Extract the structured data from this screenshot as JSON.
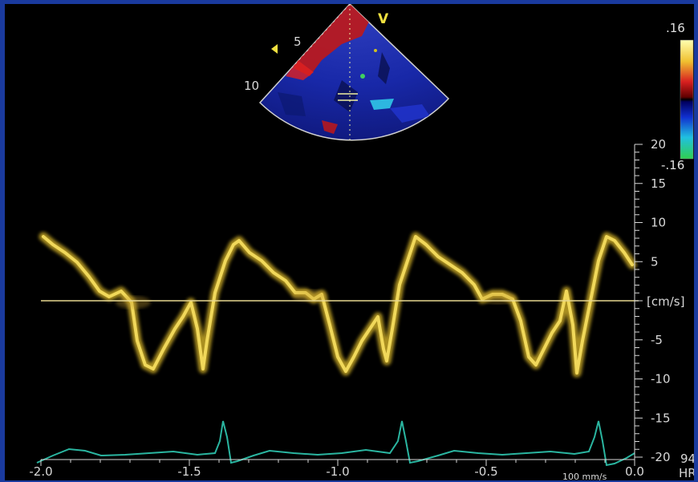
{
  "sector": {
    "view_marker": "V",
    "depth_labels": [
      "5",
      "10"
    ]
  },
  "colorbar": {
    "max_label": ".16",
    "min_label": "-.16"
  },
  "velocity_axis": {
    "unit_label": "[cm/s]",
    "ticks": [
      "20",
      "15",
      "10",
      "5",
      "-5",
      "-10",
      "-15",
      "-20"
    ],
    "tick_values": [
      20,
      15,
      10,
      5,
      -5,
      -10,
      -15,
      -20
    ]
  },
  "time_axis": {
    "ticks": [
      "-2.0",
      "-1.5",
      "-1.0",
      "-0.5",
      "0.0"
    ],
    "tick_values": [
      -2.0,
      -1.5,
      -1.0,
      -0.5,
      0.0
    ],
    "sweep_speed": "100 mm/s"
  },
  "heart_rate": {
    "value": "94",
    "label": "HR"
  },
  "colors": {
    "background": "#000000",
    "border": "#1a3a9e",
    "doppler_trace": "#f0d040",
    "ecg_trace": "#2ab5a0",
    "axis": "#d8d8d8",
    "baseline": "#e8d890"
  }
}
